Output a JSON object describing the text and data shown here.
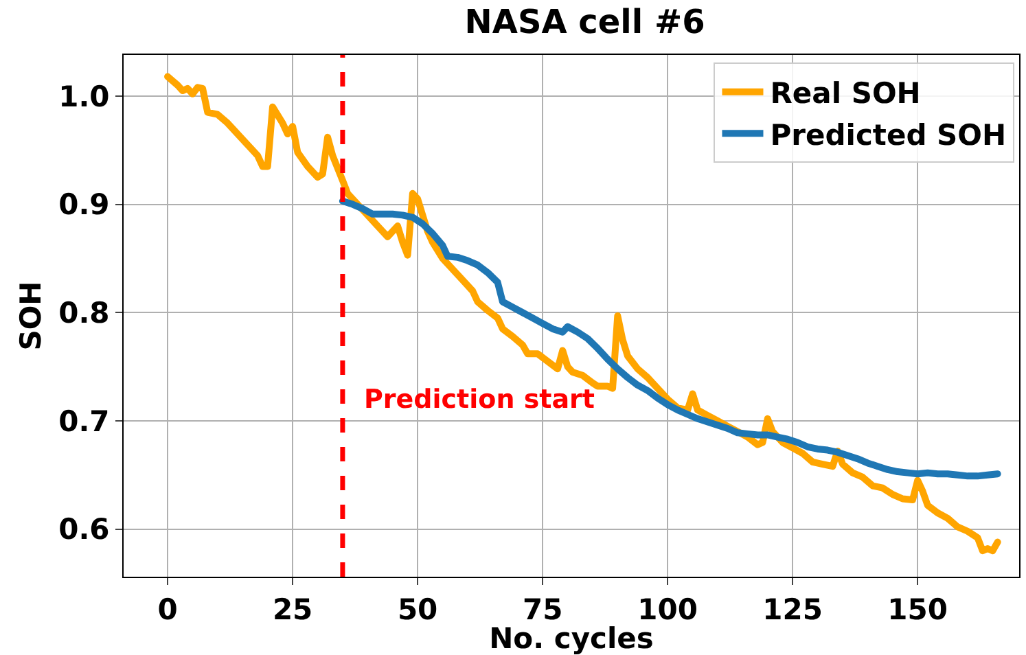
{
  "chart_data": {
    "type": "line",
    "title": "NASA cell #6",
    "xlabel": "No. cycles",
    "ylabel": "SOH",
    "xlim": [
      -8.8,
      170.3
    ],
    "ylim": [
      0.556,
      1.038
    ],
    "xticks": [
      0,
      25,
      50,
      75,
      100,
      125,
      150
    ],
    "yticks": [
      {
        "value": 0.6,
        "label": "0.6"
      },
      {
        "value": 0.7,
        "label": "0.7"
      },
      {
        "value": 0.8,
        "label": "0.8"
      },
      {
        "value": 0.9,
        "label": "0.9"
      },
      {
        "value": 1.0,
        "label": "1.0"
      }
    ],
    "grid": true,
    "legend": "top right",
    "marker": "none",
    "line_style": "solid",
    "ref_lines": [
      {
        "axis": "x",
        "value": 35,
        "color": "#ff0000",
        "line_style": "dashed"
      }
    ],
    "annotations": [
      "Prediction start"
    ],
    "series": [
      {
        "name": "Real SOH",
        "color": "#ffa500",
        "x": [
          0,
          2,
          3,
          4,
          5,
          6,
          7,
          8,
          9,
          10,
          12,
          14,
          16,
          18,
          19,
          20,
          21,
          23,
          24,
          25,
          26,
          28,
          30,
          31,
          32,
          33,
          35,
          36,
          38,
          40,
          42,
          44,
          46,
          47,
          48,
          49,
          50,
          51,
          52,
          53,
          55,
          57,
          59,
          61,
          62,
          64,
          66,
          67,
          69,
          71,
          72,
          74,
          76,
          78,
          79,
          80,
          81,
          83,
          85,
          86,
          88,
          89,
          90,
          91,
          92,
          94,
          96,
          98,
          100,
          102,
          104,
          105,
          106,
          108,
          110,
          112,
          114,
          116,
          118,
          119,
          120,
          121,
          123,
          125,
          127,
          129,
          131,
          133,
          134,
          135,
          137,
          139,
          141,
          143,
          145,
          147,
          149,
          150,
          151,
          152,
          154,
          156,
          158,
          160,
          162,
          163,
          164,
          165,
          166
        ],
        "values": [
          1.018,
          1.01,
          1.005,
          1.007,
          1.002,
          1.008,
          1.007,
          0.985,
          0.984,
          0.983,
          0.975,
          0.965,
          0.955,
          0.945,
          0.935,
          0.935,
          0.99,
          0.975,
          0.965,
          0.972,
          0.948,
          0.935,
          0.925,
          0.928,
          0.962,
          0.945,
          0.922,
          0.91,
          0.9,
          0.89,
          0.88,
          0.87,
          0.88,
          0.865,
          0.853,
          0.91,
          0.905,
          0.89,
          0.875,
          0.865,
          0.85,
          0.84,
          0.83,
          0.82,
          0.81,
          0.802,
          0.795,
          0.785,
          0.778,
          0.77,
          0.762,
          0.762,
          0.755,
          0.748,
          0.765,
          0.75,
          0.745,
          0.742,
          0.735,
          0.732,
          0.732,
          0.73,
          0.797,
          0.775,
          0.76,
          0.748,
          0.74,
          0.73,
          0.72,
          0.712,
          0.71,
          0.725,
          0.71,
          0.705,
          0.7,
          0.695,
          0.69,
          0.685,
          0.678,
          0.68,
          0.702,
          0.69,
          0.68,
          0.675,
          0.67,
          0.662,
          0.66,
          0.658,
          0.672,
          0.66,
          0.652,
          0.648,
          0.64,
          0.638,
          0.632,
          0.628,
          0.627,
          0.645,
          0.635,
          0.622,
          0.615,
          0.61,
          0.602,
          0.598,
          0.592,
          0.58,
          0.582,
          0.58,
          0.588
        ]
      },
      {
        "name": "Predicted SOH",
        "color": "#1f77b4",
        "x": [
          35,
          37,
          39,
          41,
          43,
          45,
          47,
          49,
          51,
          53,
          55,
          56,
          58,
          60,
          62,
          64,
          66,
          67,
          69,
          71,
          73,
          75,
          77,
          79,
          80,
          82,
          84,
          86,
          88,
          90,
          92,
          94,
          96,
          98,
          100,
          102,
          104,
          106,
          108,
          110,
          112,
          114,
          116,
          118,
          120,
          122,
          124,
          126,
          128,
          130,
          132,
          134,
          136,
          138,
          140,
          142,
          144,
          146,
          148,
          150,
          152,
          154,
          156,
          158,
          160,
          162,
          164,
          166
        ],
        "values": [
          0.903,
          0.9,
          0.896,
          0.891,
          0.891,
          0.891,
          0.89,
          0.888,
          0.882,
          0.873,
          0.862,
          0.852,
          0.851,
          0.848,
          0.844,
          0.837,
          0.828,
          0.81,
          0.805,
          0.8,
          0.795,
          0.79,
          0.785,
          0.782,
          0.787,
          0.782,
          0.776,
          0.767,
          0.757,
          0.748,
          0.74,
          0.733,
          0.728,
          0.721,
          0.715,
          0.71,
          0.706,
          0.702,
          0.699,
          0.696,
          0.693,
          0.689,
          0.688,
          0.687,
          0.687,
          0.685,
          0.683,
          0.68,
          0.676,
          0.674,
          0.673,
          0.671,
          0.668,
          0.665,
          0.661,
          0.658,
          0.655,
          0.653,
          0.652,
          0.651,
          0.652,
          0.651,
          0.651,
          0.65,
          0.649,
          0.649,
          0.65,
          0.651
        ]
      }
    ]
  }
}
